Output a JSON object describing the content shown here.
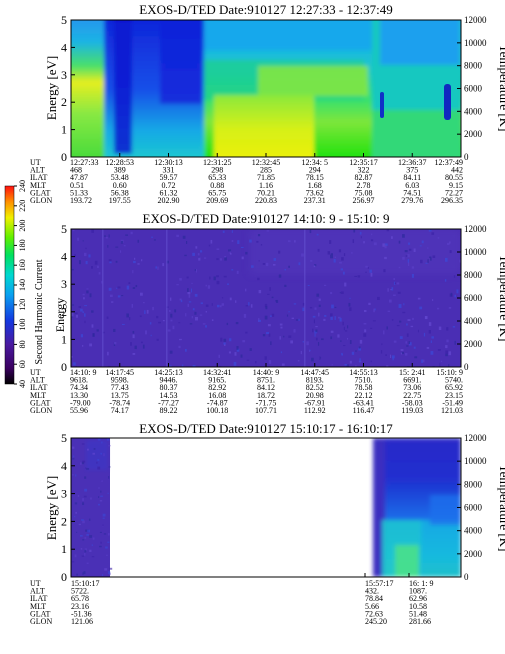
{
  "colorbar": {
    "label": "Second Harmonic Current",
    "ticks": [
      "40",
      "60",
      "80",
      "100",
      "120",
      "140",
      "160",
      "180",
      "200",
      "220",
      "240"
    ]
  },
  "panel_meta": [
    "ALT",
    "ILAT",
    "MLT",
    "GLAT",
    "GLON"
  ],
  "chart_data": [
    {
      "type": "heatmap",
      "title": "EXOS-D/TED   Date:910127  12:27:33 - 12:37:49",
      "ylabel": "Energy [eV]",
      "y2label": "Temperature [K]",
      "ylim": [
        0,
        5
      ],
      "y2lim": [
        0,
        12000
      ],
      "yticks": [
        "0",
        "1",
        "2",
        "3",
        "4",
        "5"
      ],
      "y2ticks": [
        "0",
        "2000",
        "4000",
        "6000",
        "8000",
        "10000",
        "12000"
      ],
      "rows": {
        "UT": [
          "12:27:33",
          "12:28:53",
          "12:30:13",
          "12:31:25",
          "12:32:45",
          "12:34: 5",
          "12:35:17",
          "12:36:37",
          "12:37:49"
        ],
        "ALT": [
          "468",
          "389",
          "331",
          "298",
          "285",
          "294",
          "322",
          "375",
          "442"
        ],
        "ILAT": [
          "47.87",
          "53.48",
          "59.57",
          "65.33",
          "71.85",
          "78.15",
          "82.87",
          "84.11",
          "80.55"
        ],
        "MLT": [
          "0.51",
          "0.60",
          "0.72",
          "0.88",
          "1.16",
          "1.68",
          "2.78",
          "6.03",
          "9.15"
        ],
        "GLAT": [
          "51.33",
          "56.38",
          "61.32",
          "65.75",
          "70.21",
          "73.62",
          "75.08",
          "74.51",
          "72.27"
        ],
        "GLON": [
          "193.72",
          "197.55",
          "202.90",
          "209.69",
          "220.83",
          "237.31",
          "256.97",
          "279.76",
          "296.35"
        ]
      },
      "spectrogram": "broad cyan/green/yellow energy-time spectrogram with blue dropout at 12:29-12:31 and blue temperature marks near 12:35:40 and 12:37:40"
    },
    {
      "type": "heatmap",
      "title": "EXOS-D/TED   Date:910127  14:10: 9 - 15:10: 9",
      "ylabel": "Energy",
      "y2label": "Temperature [K]",
      "ylim": [
        0,
        5
      ],
      "y2lim": [
        0,
        12000
      ],
      "yticks": [
        "0",
        "1",
        "2",
        "3",
        "4",
        "5"
      ],
      "y2ticks": [
        "0",
        "2000",
        "4000",
        "6000",
        "8000",
        "10000",
        "12000"
      ],
      "rows": {
        "UT": [
          "14:10: 9",
          "14:17:45",
          "14:25:13",
          "14:32:41",
          "14:40: 9",
          "14:47:45",
          "14:55:13",
          "15: 2:41",
          "15:10: 9"
        ],
        "ALT": [
          "9618.",
          "9598.",
          "9446.",
          "9165.",
          "8751.",
          "8193.",
          "7510.",
          "6691.",
          "5740."
        ],
        "ILAT": [
          "74.34",
          "77.43",
          "80.37",
          "82.92",
          "84.12",
          "82.52",
          "78.58",
          "73.06",
          "65.92"
        ],
        "MLT": [
          "13.30",
          "13.75",
          "14.53",
          "16.08",
          "18.72",
          "20.98",
          "22.12",
          "22.75",
          "23.15"
        ],
        "GLAT": [
          "-79.00",
          "-78.74",
          "-77.27",
          "-74.87",
          "-71.75",
          "-67.91",
          "-63.41",
          "-58.03",
          "-51.49"
        ],
        "GLON": [
          "55.96",
          "74.17",
          "89.22",
          "100.18",
          "107.71",
          "112.92",
          "116.47",
          "119.03",
          "121.03"
        ]
      },
      "spectrogram": "uniformly low (dark purple) intensity with faint speckle"
    },
    {
      "type": "heatmap",
      "title": "EXOS-D/TED   Date:910127  15:10:17 - 16:10:17",
      "ylabel": "Energy [eV]",
      "y2label": "Temperature [K]",
      "ylim": [
        0,
        5
      ],
      "y2lim": [
        0,
        12000
      ],
      "yticks": [
        "0",
        "1",
        "2",
        "3",
        "4",
        "5"
      ],
      "y2ticks": [
        "0",
        "2000",
        "4000",
        "6000",
        "8000",
        "10000",
        "12000"
      ],
      "rows": {
        "UT": [
          "15:10:17",
          "15:57:17",
          "16: 1: 9"
        ],
        "ALT": [
          "5722.",
          "432.",
          "1087."
        ],
        "ILAT": [
          "65.78",
          "78.84",
          "62.96"
        ],
        "MLT": [
          "23.16",
          "5.66",
          "10.58"
        ],
        "GLAT": [
          "-51.36",
          "72.63",
          "51.48"
        ],
        "GLON": [
          "121.06",
          "245.20",
          "281.66"
        ]
      },
      "spectrogram": "data only at start (15:10-15:15) and end (15:57-16:10); blank gap in between"
    }
  ]
}
